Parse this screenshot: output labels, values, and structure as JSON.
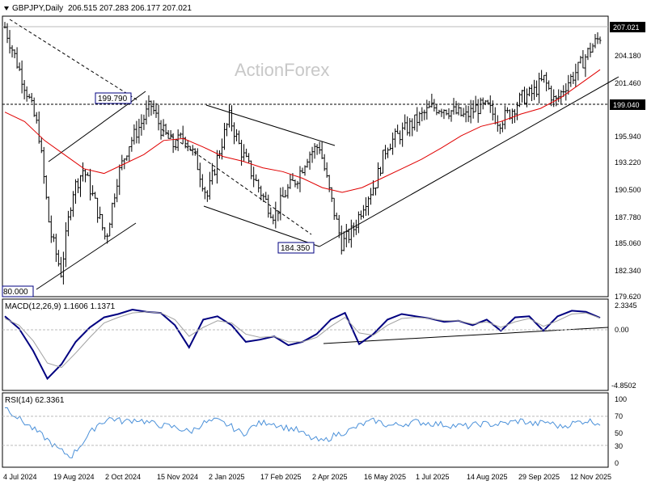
{
  "header": {
    "symbol_info": "GBPJPY,Daily",
    "ohlc": "206.515 207.283 206.177 207.021"
  },
  "watermark": "ActionForex",
  "colors": {
    "price": "#000000",
    "ma": "#e00000",
    "macd": "#000080",
    "signal": "#a0a0a0",
    "rsi": "#4a90d9",
    "tag_border": "#000080"
  },
  "chart_data": [
    {
      "type": "line",
      "panel": "price",
      "ylim": [
        179.62,
        209.0
      ],
      "ytick_labels": [
        "207.021",
        "204.180",
        "201.460",
        "199.040",
        "195.940",
        "193.220",
        "190.500",
        "187.780",
        "185.060",
        "182.340",
        "179.620"
      ],
      "current_price": 207.021,
      "support_level": 199.04,
      "annotations": [
        "199.790",
        "184.350",
        "80.000"
      ],
      "date_labels": [
        "4 Jul 2024",
        "19 Aug 2024",
        "2 Oct 2024",
        "15 Nov 2024",
        "2 Jan 2025",
        "17 Feb 2025",
        "2 Apr 2025",
        "16 May 2025",
        "1 Jul 2025",
        "14 Aug 2025",
        "29 Sep 2025",
        "12 Nov 2025"
      ],
      "series": [
        {
          "values": [
            208.0,
            204.5,
            201.0,
            197.0,
            186.5,
            182.0,
            190.5,
            193.0,
            189.5,
            185.5,
            192.0,
            195.5,
            197.5,
            199.79,
            197.0,
            195.5,
            196.5,
            194.0,
            190.0,
            194.5,
            198.5,
            195.0,
            192.5,
            190.0,
            188.0,
            190.5,
            192.0,
            194.5,
            195.5,
            190.0,
            185.0,
            186.5,
            189.5,
            191.5,
            195.5,
            196.5,
            197.5,
            198.5,
            199.5,
            199.5,
            199.0,
            198.5,
            199.5,
            199.5,
            198.0,
            199.0,
            200.5,
            201.0,
            202.5,
            200.0,
            202.0,
            203.5,
            205.5,
            207.021
          ]
        },
        {
          "values": [
            199.0,
            198.0,
            196.0,
            194.5,
            193.0,
            192.5,
            193.5,
            194.5,
            196.0,
            196.2,
            195.3,
            194.3,
            193.8,
            193.1,
            192.7,
            192.0,
            191.0,
            190.5,
            191.0,
            192.0,
            193.0,
            194.0,
            195.2,
            196.5,
            197.5,
            198.0,
            198.8,
            199.4,
            200.5,
            202.0,
            203.5
          ]
        }
      ]
    },
    {
      "type": "line",
      "panel": "macd",
      "label": "MACD(12,26,9) 1.1606 1.1371",
      "ytick_labels": [
        "2.3345",
        "0.00",
        "-4.8502"
      ],
      "ylim": [
        -4.8502,
        2.3345
      ],
      "series": [
        {
          "values": [
            1.3,
            0.2,
            -1.8,
            -4.3,
            -3.0,
            -1.0,
            0.3,
            1.2,
            1.5,
            1.9,
            1.7,
            1.6,
            0.5,
            -1.5,
            1.0,
            1.3,
            0.5,
            -1.0,
            -0.8,
            -0.5,
            -1.3,
            -1.0,
            -0.3,
            1.0,
            1.6,
            -1.2,
            -0.3,
            1.0,
            1.5,
            1.3,
            1.1,
            0.8,
            0.9,
            0.5,
            1.0,
            0.0,
            1.2,
            1.3,
            0.0,
            1.3,
            1.8,
            1.7,
            1.16
          ]
        },
        {
          "values": [
            1.1,
            0.5,
            -0.9,
            -2.9,
            -3.3,
            -2.0,
            -0.6,
            0.7,
            1.2,
            1.6,
            1.7,
            1.6,
            1.0,
            -0.5,
            0.3,
            0.9,
            0.7,
            -0.3,
            -0.6,
            -0.5,
            -1.0,
            -1.0,
            -0.6,
            0.4,
            1.2,
            -0.2,
            -0.4,
            0.5,
            1.1,
            1.2,
            1.1,
            0.9,
            0.9,
            0.6,
            0.8,
            0.3,
            0.8,
            1.1,
            0.4,
            0.9,
            1.5,
            1.6,
            1.14
          ]
        }
      ]
    },
    {
      "type": "line",
      "panel": "rsi",
      "label": "RSI(14) 62.3361",
      "ytick_labels": [
        "100",
        "70",
        "50",
        "30",
        "0"
      ],
      "ylim": [
        0,
        100
      ],
      "levels": [
        70,
        30
      ],
      "series": [
        {
          "values": [
            88,
            70,
            55,
            40,
            22,
            10,
            35,
            60,
            70,
            64,
            68,
            62,
            58,
            55,
            48,
            62,
            66,
            58,
            45,
            60,
            64,
            56,
            52,
            40,
            33,
            44,
            50,
            60,
            66,
            58,
            60,
            64,
            62,
            60,
            58,
            57,
            61,
            60,
            62,
            66,
            60,
            64,
            56,
            62,
            66,
            62
          ]
        }
      ]
    }
  ]
}
